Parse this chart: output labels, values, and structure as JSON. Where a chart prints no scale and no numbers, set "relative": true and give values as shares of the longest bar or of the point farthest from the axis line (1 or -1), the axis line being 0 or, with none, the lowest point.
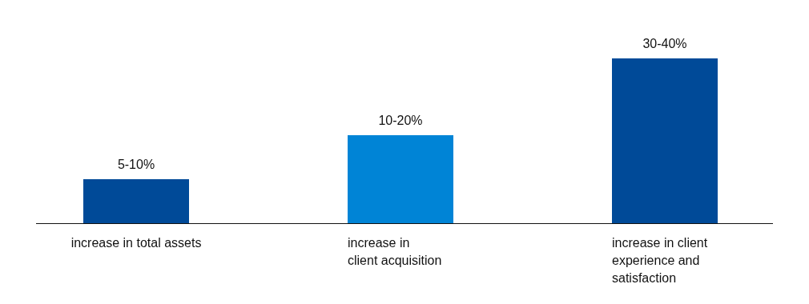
{
  "chart_data": {
    "type": "bar",
    "relative": true,
    "categories": [
      "increase in total assets",
      "increase in\nclient acquisition",
      "increase in client\nexperience and\nsatisfaction"
    ],
    "values": [
      0.267,
      0.534,
      1
    ],
    "colors": [
      "#004a98",
      "#0084d6",
      "#004a98"
    ],
    "annotations": [
      {
        "text": "5-10%",
        "x": "increase in total assets",
        "y": 0.267
      },
      {
        "text": "10-20%",
        "x": "increase in\nclient acquisition",
        "y": 0.534
      },
      {
        "text": "30-40%",
        "x": "increase in client\nexperience and\nsatisfaction",
        "y": 1
      }
    ]
  }
}
